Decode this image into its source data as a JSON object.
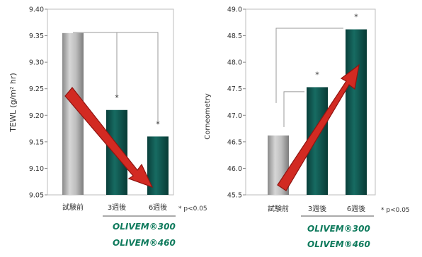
{
  "chart_data": [
    {
      "type": "bar",
      "categories": [
        "試験前",
        "3週後",
        "6週後"
      ],
      "values": [
        9.355,
        9.21,
        9.16
      ],
      "ylabel": "TEWL (g/m² hr)",
      "ylim": [
        9.05,
        9.4
      ],
      "yticks": [
        "9.40",
        "9.35",
        "9.30",
        "9.25",
        "9.20",
        "9.15",
        "9.10",
        "9.05"
      ],
      "ytick_values": [
        9.4,
        9.35,
        9.3,
        9.25,
        9.2,
        9.15,
        9.1,
        9.05
      ],
      "significance": [
        "",
        "*",
        "*"
      ],
      "brackets": [
        {
          "from": 0,
          "to": 1
        },
        {
          "from": 0,
          "to": 2
        }
      ],
      "trend_arrow": "down",
      "footnote": "* p<0.05",
      "bar_colors": [
        "#a8a8a8",
        "#0e5a52",
        "#0e5a52"
      ],
      "arrow_color": "#cc1f1f",
      "grid": false
    },
    {
      "type": "bar",
      "categories": [
        "試験前",
        "3週後",
        "6週後"
      ],
      "values": [
        46.62,
        47.53,
        48.62
      ],
      "ylabel": "Corneometry",
      "ylim": [
        45.5,
        49.0
      ],
      "yticks": [
        "49.0",
        "48.5",
        "48.0",
        "47.5",
        "47.0",
        "46.5",
        "46.0",
        "45.5"
      ],
      "ytick_values": [
        49.0,
        48.5,
        48.0,
        47.5,
        47.0,
        46.5,
        46.0,
        45.5
      ],
      "significance": [
        "",
        "*",
        "*"
      ],
      "brackets": [
        {
          "from": 0,
          "to": 1
        },
        {
          "from": 0,
          "to": 2
        }
      ],
      "trend_arrow": "up",
      "footnote": "* p<0.05",
      "bar_colors": [
        "#a8a8a8",
        "#0e5a52",
        "#0e5a52"
      ],
      "arrow_color": "#cc1f1f",
      "grid": false
    }
  ],
  "products": [
    "OLIVEM®300",
    "OLIVEM®460"
  ],
  "brand_color": "#0e7a5c"
}
